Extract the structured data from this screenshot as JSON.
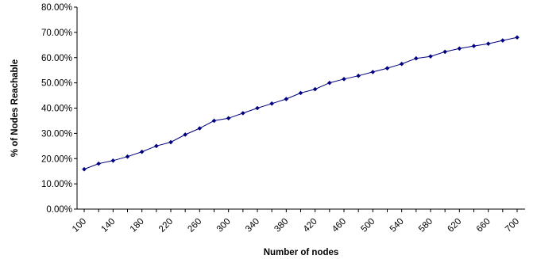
{
  "chart_data": {
    "type": "line",
    "title": "",
    "xlabel": "Number of nodes",
    "ylabel": "% of Nodes Reachable",
    "x_tick_labels": [
      "100",
      "140",
      "180",
      "220",
      "260",
      "300",
      "340",
      "380",
      "420",
      "460",
      "500",
      "540",
      "580",
      "620",
      "660",
      "700"
    ],
    "y_tick_labels": [
      "0.00%",
      "10.00%",
      "20.00%",
      "30.00%",
      "40.00%",
      "50.00%",
      "60.00%",
      "70.00%",
      "80.00%"
    ],
    "xlim": [
      100,
      700
    ],
    "ylim": [
      0,
      80
    ],
    "grid": false,
    "legend": "none",
    "series": [
      {
        "color": "#000080",
        "marker": "diamond",
        "x": [
          100,
          120,
          140,
          160,
          180,
          200,
          220,
          240,
          260,
          280,
          300,
          320,
          340,
          360,
          380,
          400,
          420,
          440,
          460,
          480,
          500,
          520,
          540,
          560,
          580,
          600,
          620,
          640,
          660,
          680,
          700
        ],
        "y": [
          15.8,
          18.0,
          19.2,
          20.8,
          22.7,
          25.0,
          26.5,
          29.5,
          32.0,
          35.0,
          36.0,
          38.0,
          40.0,
          41.8,
          43.6,
          46.0,
          47.5,
          50.0,
          51.5,
          52.8,
          54.3,
          55.8,
          57.5,
          59.7,
          60.5,
          62.3,
          63.6,
          64.6,
          65.5,
          66.8,
          68.0
        ]
      }
    ]
  }
}
